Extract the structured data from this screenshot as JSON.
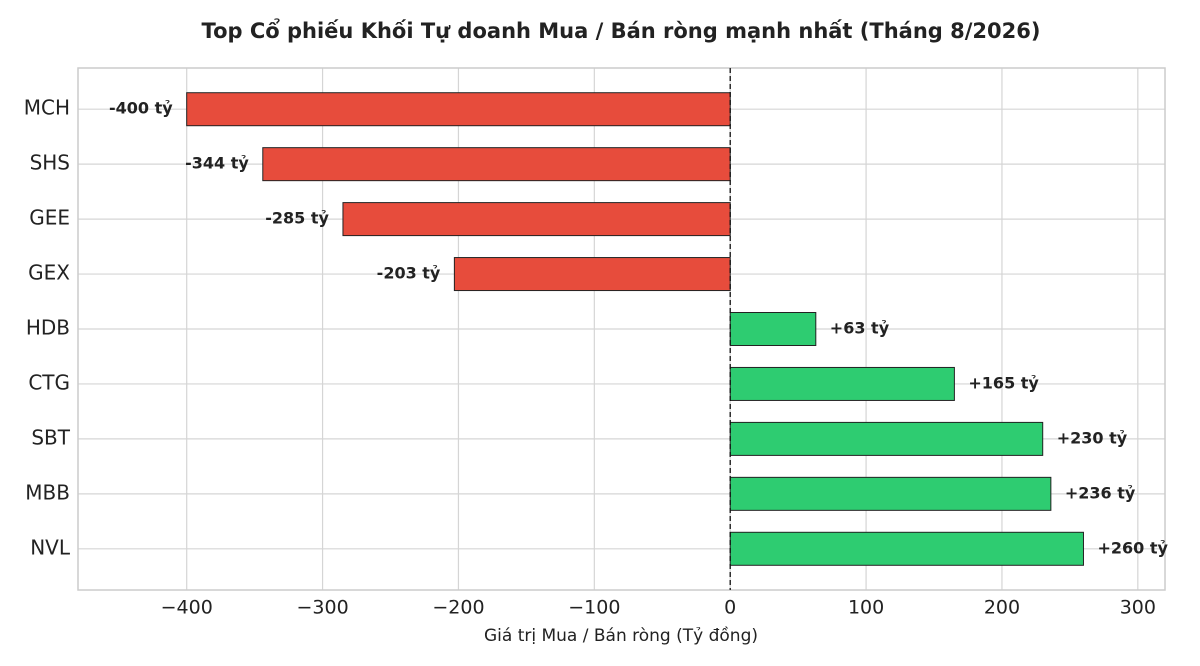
{
  "chart_data": {
    "type": "barh",
    "title": "Top Cổ phiếu Khối Tự doanh Mua / Bán ròng mạnh nhất (Tháng 8/2026)",
    "xlabel": "Giá trị Mua / Bán ròng (Tỷ đồng)",
    "categories": [
      "MCH",
      "SHS",
      "GEE",
      "GEX",
      "HDB",
      "CTG",
      "SBT",
      "MBB",
      "NVL"
    ],
    "values": [
      -400,
      -344,
      -285,
      -203,
      63,
      165,
      230,
      236,
      260
    ],
    "value_labels": [
      "-400 tỷ",
      "-344 tỷ",
      "-285 tỷ",
      "-203 tỷ",
      "+63 tỷ",
      "+165 tỷ",
      "+230 tỷ",
      "+236 tỷ",
      "+260 tỷ"
    ],
    "negative_color": "#e74c3c",
    "positive_color": "#2ecc71",
    "negative_label_color": "#922b21",
    "positive_label_color": "#1e8449",
    "xlim": [
      -480,
      320
    ],
    "xticks": [
      {
        "value": -400,
        "label": "−400"
      },
      {
        "value": -300,
        "label": "−300"
      },
      {
        "value": -200,
        "label": "−200"
      },
      {
        "value": -100,
        "label": "−100"
      },
      0,
      100,
      200,
      300
    ],
    "grid": true
  }
}
